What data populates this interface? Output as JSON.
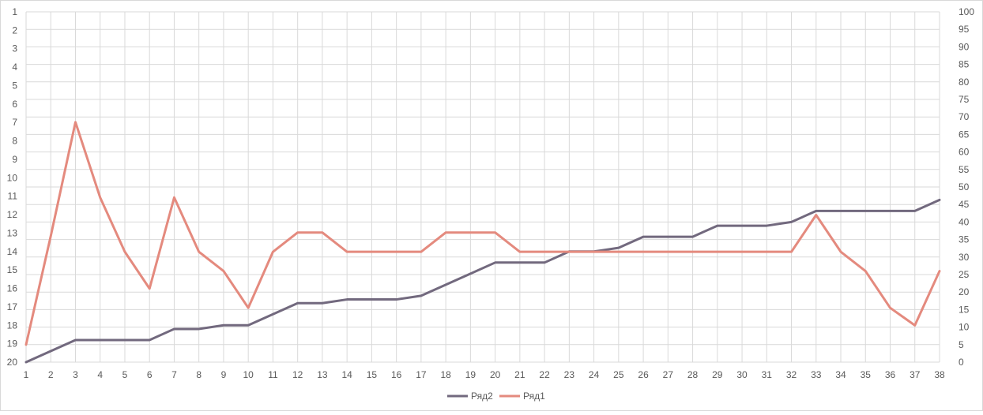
{
  "chart_data": {
    "type": "line",
    "x": [
      1,
      2,
      3,
      4,
      5,
      6,
      7,
      8,
      9,
      10,
      11,
      12,
      13,
      14,
      15,
      16,
      17,
      18,
      19,
      20,
      21,
      22,
      23,
      24,
      25,
      26,
      27,
      28,
      29,
      30,
      31,
      32,
      33,
      34,
      35,
      36,
      37,
      38
    ],
    "left_axis": {
      "ticks": [
        "1",
        "2",
        "3",
        "4",
        "5",
        "6",
        "7",
        "8",
        "9",
        "10",
        "11",
        "12",
        "13",
        "14",
        "15",
        "16",
        "17",
        "18",
        "19",
        "20"
      ],
      "min": 1,
      "max": 20,
      "reversed": true
    },
    "right_axis": {
      "ticks": [
        "0",
        "5",
        "10",
        "15",
        "20",
        "25",
        "30",
        "35",
        "40",
        "45",
        "50",
        "55",
        "60",
        "65",
        "70",
        "75",
        "80",
        "85",
        "90",
        "95",
        "100"
      ],
      "min": 0,
      "max": 100
    },
    "series": [
      {
        "name": "Ряд2",
        "axis": "left",
        "color": "#72697e",
        "values": [
          20,
          19.4,
          18.8,
          18.8,
          18.8,
          18.8,
          18.2,
          18.2,
          18,
          18,
          17.4,
          16.8,
          16.8,
          16.6,
          16.6,
          16.6,
          16.4,
          15.8,
          15.2,
          14.6,
          14.6,
          14.6,
          14,
          14,
          13.8,
          13.2,
          13.2,
          13.2,
          12.6,
          12.6,
          12.6,
          12.4,
          11.8,
          11.8,
          11.8,
          11.8,
          11.8,
          11.2
        ]
      },
      {
        "name": "Ряд1",
        "axis": "right",
        "color": "#e48a7e",
        "values": [
          5,
          36,
          68.5,
          47,
          31.5,
          21,
          47,
          31.5,
          26,
          15.5,
          31.5,
          37,
          37,
          31.5,
          31.5,
          31.5,
          31.5,
          37,
          37,
          37,
          31.5,
          31.5,
          31.5,
          31.5,
          31.5,
          31.5,
          31.5,
          31.5,
          31.5,
          31.5,
          31.5,
          31.5,
          42,
          31.5,
          26,
          15.5,
          10.5,
          26
        ]
      }
    ],
    "legend": {
      "position": "bottom",
      "items": [
        "Ряд2",
        "Ряд1"
      ]
    },
    "grid": true,
    "colors": {
      "grid": "#d9d9d9",
      "text": "#595959",
      "border": "#d9d9d9"
    }
  }
}
